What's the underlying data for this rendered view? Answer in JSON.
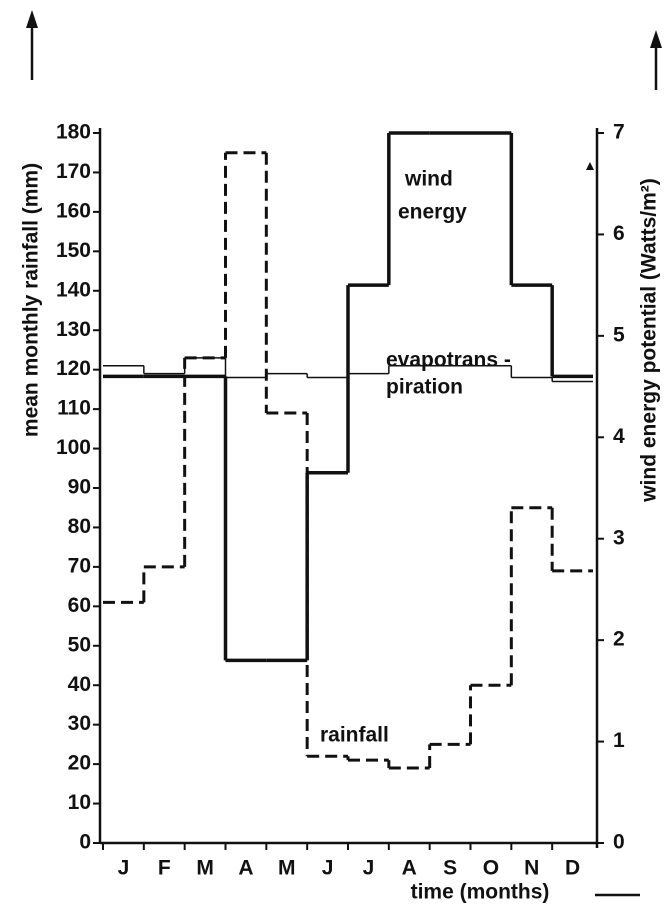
{
  "chart_data": {
    "type": "step",
    "y_label": "mean monthly rainfall (mm)",
    "y2_label": "wind energy potential (Watts/m²)",
    "x_label": "time (months)",
    "annotations": [
      "wind",
      "energy",
      "evapotrans -",
      "piration",
      "rainfall"
    ],
    "categories": [
      "J",
      "F",
      "M",
      "A",
      "M",
      "J",
      "J",
      "A",
      "S",
      "O",
      "N",
      "D"
    ],
    "ylim": [
      0,
      180
    ],
    "yticks": [
      0,
      10,
      20,
      30,
      40,
      50,
      60,
      70,
      80,
      90,
      100,
      110,
      120,
      130,
      140,
      150,
      160,
      170,
      180
    ],
    "y2lim": [
      0,
      7
    ],
    "y2ticks": [
      0,
      1,
      2,
      3,
      4,
      5,
      6,
      7
    ],
    "series": [
      {
        "name": "rainfall",
        "color": "#111",
        "style": "dashed",
        "values": [
          61,
          70,
          123,
          175,
          109,
          22,
          21,
          19,
          25,
          40,
          85,
          69
        ]
      },
      {
        "name": "evapotranspiration",
        "color": "#111",
        "style": "thin",
        "values": [
          121,
          119,
          123,
          118,
          119,
          118,
          119,
          121,
          121,
          121,
          118,
          117
        ]
      },
      {
        "name": "wind energy",
        "color": "#111",
        "style": "solid",
        "axis": "y2",
        "values": [
          4.6,
          4.6,
          4.6,
          1.8,
          1.8,
          3.65,
          5.5,
          7.0,
          7.0,
          7.0,
          5.5,
          4.6
        ]
      }
    ]
  }
}
